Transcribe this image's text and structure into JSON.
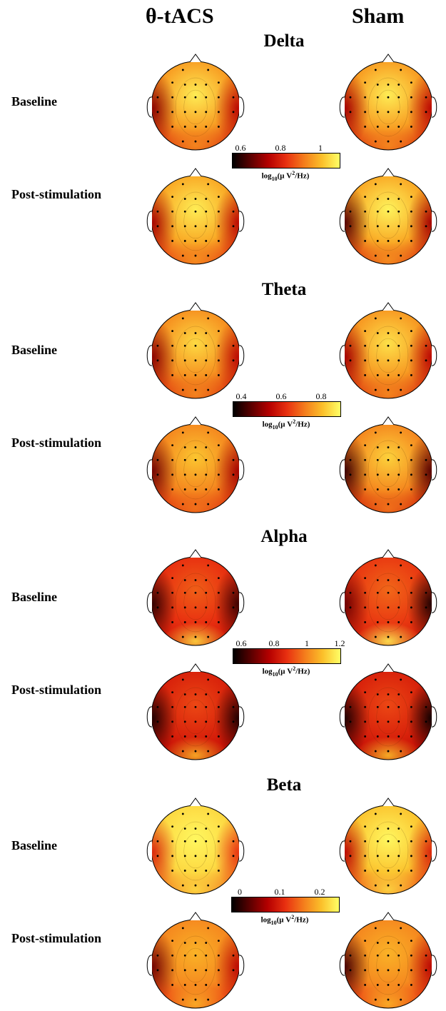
{
  "columns": [
    "θ-tACS",
    "Sham"
  ],
  "rows": [
    "Baseline",
    "Post-stimulation"
  ],
  "colormap": [
    "#000000",
    "#5a0000",
    "#b40000",
    "#e83010",
    "#f47c1c",
    "#fbbf2a",
    "#ffff66"
  ],
  "unit": {
    "prefix": "log",
    "sub": "10",
    "mid": "(μ V",
    "sup": "2",
    "end": "/Hz)"
  },
  "bands": [
    {
      "name": "Delta",
      "colorbar_ticks": [
        "0.6",
        "0.8",
        "1"
      ],
      "maps": [
        {
          "row": "Baseline",
          "column": "θ-tACS",
          "center": 0.95,
          "mid": 0.75,
          "edge": 0.45,
          "left": 0.25,
          "right": 0.35,
          "back": 0.7
        },
        {
          "row": "Baseline",
          "column": "Sham",
          "center": 0.95,
          "mid": 0.75,
          "edge": 0.45,
          "left": 0.3,
          "right": 0.35,
          "back": 0.7
        },
        {
          "row": "Post-stimulation",
          "column": "θ-tACS",
          "center": 0.95,
          "mid": 0.78,
          "edge": 0.48,
          "left": 0.3,
          "right": 0.35,
          "back": 0.72
        },
        {
          "row": "Post-stimulation",
          "column": "Sham",
          "center": 0.97,
          "mid": 0.78,
          "edge": 0.45,
          "left": 0.15,
          "right": 0.3,
          "back": 0.72
        }
      ]
    },
    {
      "name": "Theta",
      "colorbar_ticks": [
        "0.4",
        "0.6",
        "0.8"
      ],
      "maps": [
        {
          "row": "Baseline",
          "column": "θ-tACS",
          "center": 0.9,
          "mid": 0.72,
          "edge": 0.45,
          "left": 0.25,
          "right": 0.35,
          "back": 0.7
        },
        {
          "row": "Baseline",
          "column": "Sham",
          "center": 0.92,
          "mid": 0.74,
          "edge": 0.45,
          "left": 0.3,
          "right": 0.35,
          "back": 0.7
        },
        {
          "row": "Post-stimulation",
          "column": "θ-tACS",
          "center": 0.85,
          "mid": 0.7,
          "edge": 0.45,
          "left": 0.2,
          "right": 0.3,
          "back": 0.65
        },
        {
          "row": "Post-stimulation",
          "column": "Sham",
          "center": 0.88,
          "mid": 0.7,
          "edge": 0.4,
          "left": 0.1,
          "right": 0.15,
          "back": 0.65
        }
      ]
    },
    {
      "name": "Alpha",
      "colorbar_ticks": [
        "0.6",
        "0.8",
        "1",
        "1.2"
      ],
      "maps": [
        {
          "row": "Baseline",
          "column": "θ-tACS",
          "center": 0.6,
          "mid": 0.5,
          "edge": 0.4,
          "left": 0.08,
          "right": 0.1,
          "back": 0.9
        },
        {
          "row": "Baseline",
          "column": "Sham",
          "center": 0.62,
          "mid": 0.52,
          "edge": 0.42,
          "left": 0.2,
          "right": 0.05,
          "back": 0.95
        },
        {
          "row": "Post-stimulation",
          "column": "θ-tACS",
          "center": 0.55,
          "mid": 0.45,
          "edge": 0.35,
          "left": 0.05,
          "right": 0.05,
          "back": 0.8
        },
        {
          "row": "Post-stimulation",
          "column": "Sham",
          "center": 0.55,
          "mid": 0.45,
          "edge": 0.35,
          "left": 0.05,
          "right": 0.02,
          "back": 0.82
        }
      ]
    },
    {
      "name": "Beta",
      "colorbar_ticks": [
        "0",
        "0.1",
        "0.2"
      ],
      "maps": [
        {
          "row": "Baseline",
          "column": "θ-tACS",
          "center": 0.98,
          "mid": 0.9,
          "edge": 0.62,
          "left": 0.45,
          "right": 0.5,
          "back": 0.9
        },
        {
          "row": "Baseline",
          "column": "Sham",
          "center": 0.98,
          "mid": 0.85,
          "edge": 0.55,
          "left": 0.35,
          "right": 0.45,
          "back": 0.9
        },
        {
          "row": "Post-stimulation",
          "column": "θ-tACS",
          "center": 0.8,
          "mid": 0.7,
          "edge": 0.5,
          "left": 0.2,
          "right": 0.35,
          "back": 0.8
        },
        {
          "row": "Post-stimulation",
          "column": "Sham",
          "center": 0.8,
          "mid": 0.7,
          "edge": 0.5,
          "left": 0.12,
          "right": 0.35,
          "back": 0.8
        }
      ]
    }
  ]
}
